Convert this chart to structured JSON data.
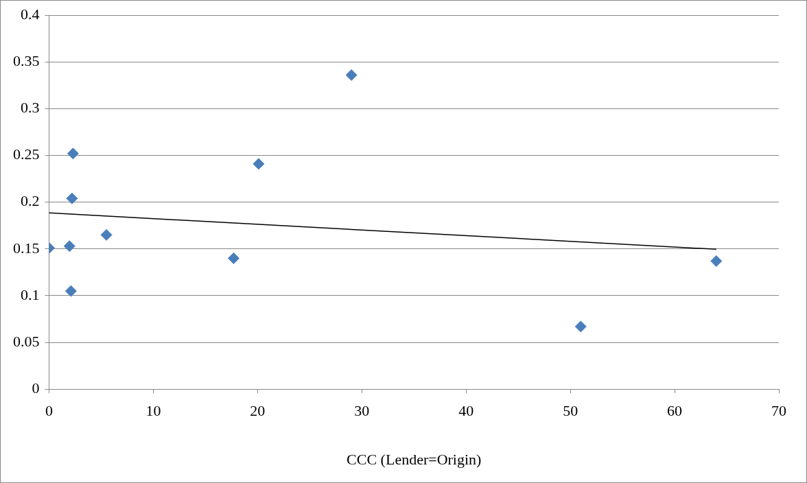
{
  "chart_data": {
    "type": "scatter",
    "xlabel": "CCC (Lender=Origin)",
    "xlim": [
      0,
      70
    ],
    "xticks": [
      0,
      10,
      20,
      30,
      40,
      50,
      60,
      70
    ],
    "ylim": [
      0,
      0.4
    ],
    "yticks": [
      0,
      0.05,
      0.1,
      0.15,
      0.2,
      0.25,
      0.3,
      0.35,
      0.4
    ],
    "grid": "y",
    "legend": false,
    "marker": "diamond",
    "series": [
      {
        "type": "scatter",
        "color": "#4a7ebb",
        "x": [
          0,
          1.96,
          2.1,
          2.2,
          2.3,
          5.5,
          17.7,
          20.1,
          29.0,
          51.0,
          64.0
        ],
        "values": [
          0.151,
          0.153,
          0.105,
          0.204,
          0.252,
          0.165,
          0.14,
          0.241,
          0.336,
          0.067,
          0.137
        ]
      },
      {
        "type": "line",
        "color": "#000000",
        "marker": "none",
        "x": [
          0,
          64
        ],
        "values": [
          0.1885,
          0.1496
        ]
      }
    ]
  }
}
